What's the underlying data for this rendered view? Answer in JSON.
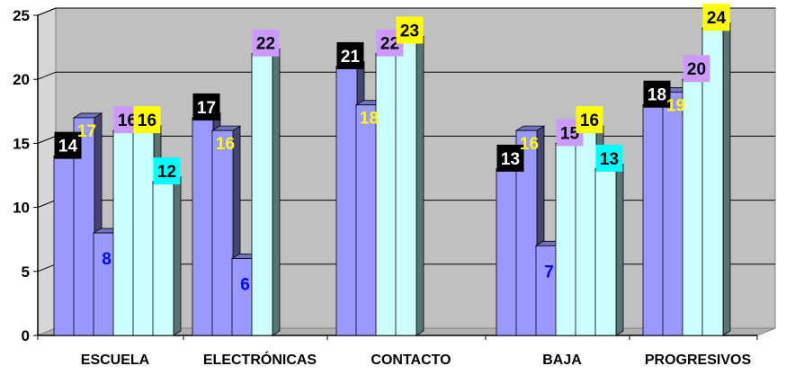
{
  "chart_data": {
    "type": "bar",
    "style": "3d-clustered-column",
    "categories": [
      "ESCUELA",
      "ELECTRÓNICAS",
      "CONTACTO",
      "BAJA",
      "PROGRESIVOS"
    ],
    "ylim": [
      0,
      25
    ],
    "yticks": [
      0,
      5,
      10,
      15,
      20,
      25
    ],
    "grid": true,
    "legend": "none",
    "groups": [
      {
        "category": "ESCUELA",
        "bars": [
          {
            "value": 14,
            "label": "14",
            "fill": "#9999ff",
            "label_bg": "#000000",
            "label_color": "#ffffff"
          },
          {
            "value": 17,
            "label": "17",
            "fill": "#9999ff",
            "label_bg": "none",
            "label_color": "#ffff00"
          },
          {
            "value": 8,
            "label": "8",
            "fill": "#9999ff",
            "label_bg": "none",
            "label_color": "#0000ff"
          },
          {
            "value": 16,
            "label": "16",
            "fill": "#ccffff",
            "label_bg": "#cc99ff",
            "label_color": "#000000"
          },
          {
            "value": 16,
            "label": "16",
            "fill": "#ccffff",
            "label_bg": "#ffff00",
            "label_color": "#000000"
          },
          {
            "value": 12,
            "label": "12",
            "fill": "#ccffff",
            "label_bg": "#00ffff",
            "label_color": "#000000"
          }
        ]
      },
      {
        "category": "ELECTRÓNICAS",
        "bars": [
          {
            "value": 17,
            "label": "17",
            "fill": "#9999ff",
            "label_bg": "#000000",
            "label_color": "#ffffff"
          },
          {
            "value": 16,
            "label": "16",
            "fill": "#9999ff",
            "label_bg": "none",
            "label_color": "#ffff00"
          },
          {
            "value": 6,
            "label": "6",
            "fill": "#9999ff",
            "label_bg": "none",
            "label_color": "#0000ff"
          },
          {
            "value": 22,
            "label": "22",
            "fill": "#ccffff",
            "label_bg": "#cc99ff",
            "label_color": "#000000"
          }
        ]
      },
      {
        "category": "CONTACTO",
        "bars": [
          {
            "value": 21,
            "label": "21",
            "fill": "#9999ff",
            "label_bg": "#000000",
            "label_color": "#ffffff"
          },
          {
            "value": 18,
            "label": "18",
            "fill": "#9999ff",
            "label_bg": "none",
            "label_color": "#ffff00"
          },
          {
            "value": 22,
            "label": "22",
            "fill": "#ccffff",
            "label_bg": "#cc99ff",
            "label_color": "#000000"
          },
          {
            "value": 23,
            "label": "23",
            "fill": "#ccffff",
            "label_bg": "#ffff00",
            "label_color": "#000000"
          }
        ]
      },
      {
        "category": "BAJA",
        "bars": [
          {
            "value": 13,
            "label": "13",
            "fill": "#9999ff",
            "label_bg": "#000000",
            "label_color": "#ffffff"
          },
          {
            "value": 16,
            "label": "16",
            "fill": "#9999ff",
            "label_bg": "none",
            "label_color": "#ffff00"
          },
          {
            "value": 7,
            "label": "7",
            "fill": "#9999ff",
            "label_bg": "none",
            "label_color": "#0000ff"
          },
          {
            "value": 15,
            "label": "15",
            "fill": "#ccffff",
            "label_bg": "#cc99ff",
            "label_color": "#000000"
          },
          {
            "value": 16,
            "label": "16",
            "fill": "#ccffff",
            "label_bg": "#ffff00",
            "label_color": "#000000"
          },
          {
            "value": 13,
            "label": "13",
            "fill": "#ccffff",
            "label_bg": "#00ffff",
            "label_color": "#000000"
          }
        ]
      },
      {
        "category": "PROGRESIVOS",
        "bars": [
          {
            "value": 18,
            "label": "18",
            "fill": "#9999ff",
            "label_bg": "#000000",
            "label_color": "#ffffff"
          },
          {
            "value": 19,
            "label": "19",
            "fill": "#9999ff",
            "label_bg": "none",
            "label_color": "#ffff00"
          },
          {
            "value": 20,
            "label": "20",
            "fill": "#ccffff",
            "label_bg": "#cc99ff",
            "label_color": "#000000"
          },
          {
            "value": 24,
            "label": "24",
            "fill": "#ccffff",
            "label_bg": "#ffff00",
            "label_color": "#000000"
          }
        ]
      }
    ],
    "colors": {
      "plot_back_wall": "#c0c0c0",
      "plot_floor": "#b0b0b0",
      "plot_side_wall": "#d6d6d6",
      "gridline": "#000000",
      "axis": "#000000"
    }
  }
}
